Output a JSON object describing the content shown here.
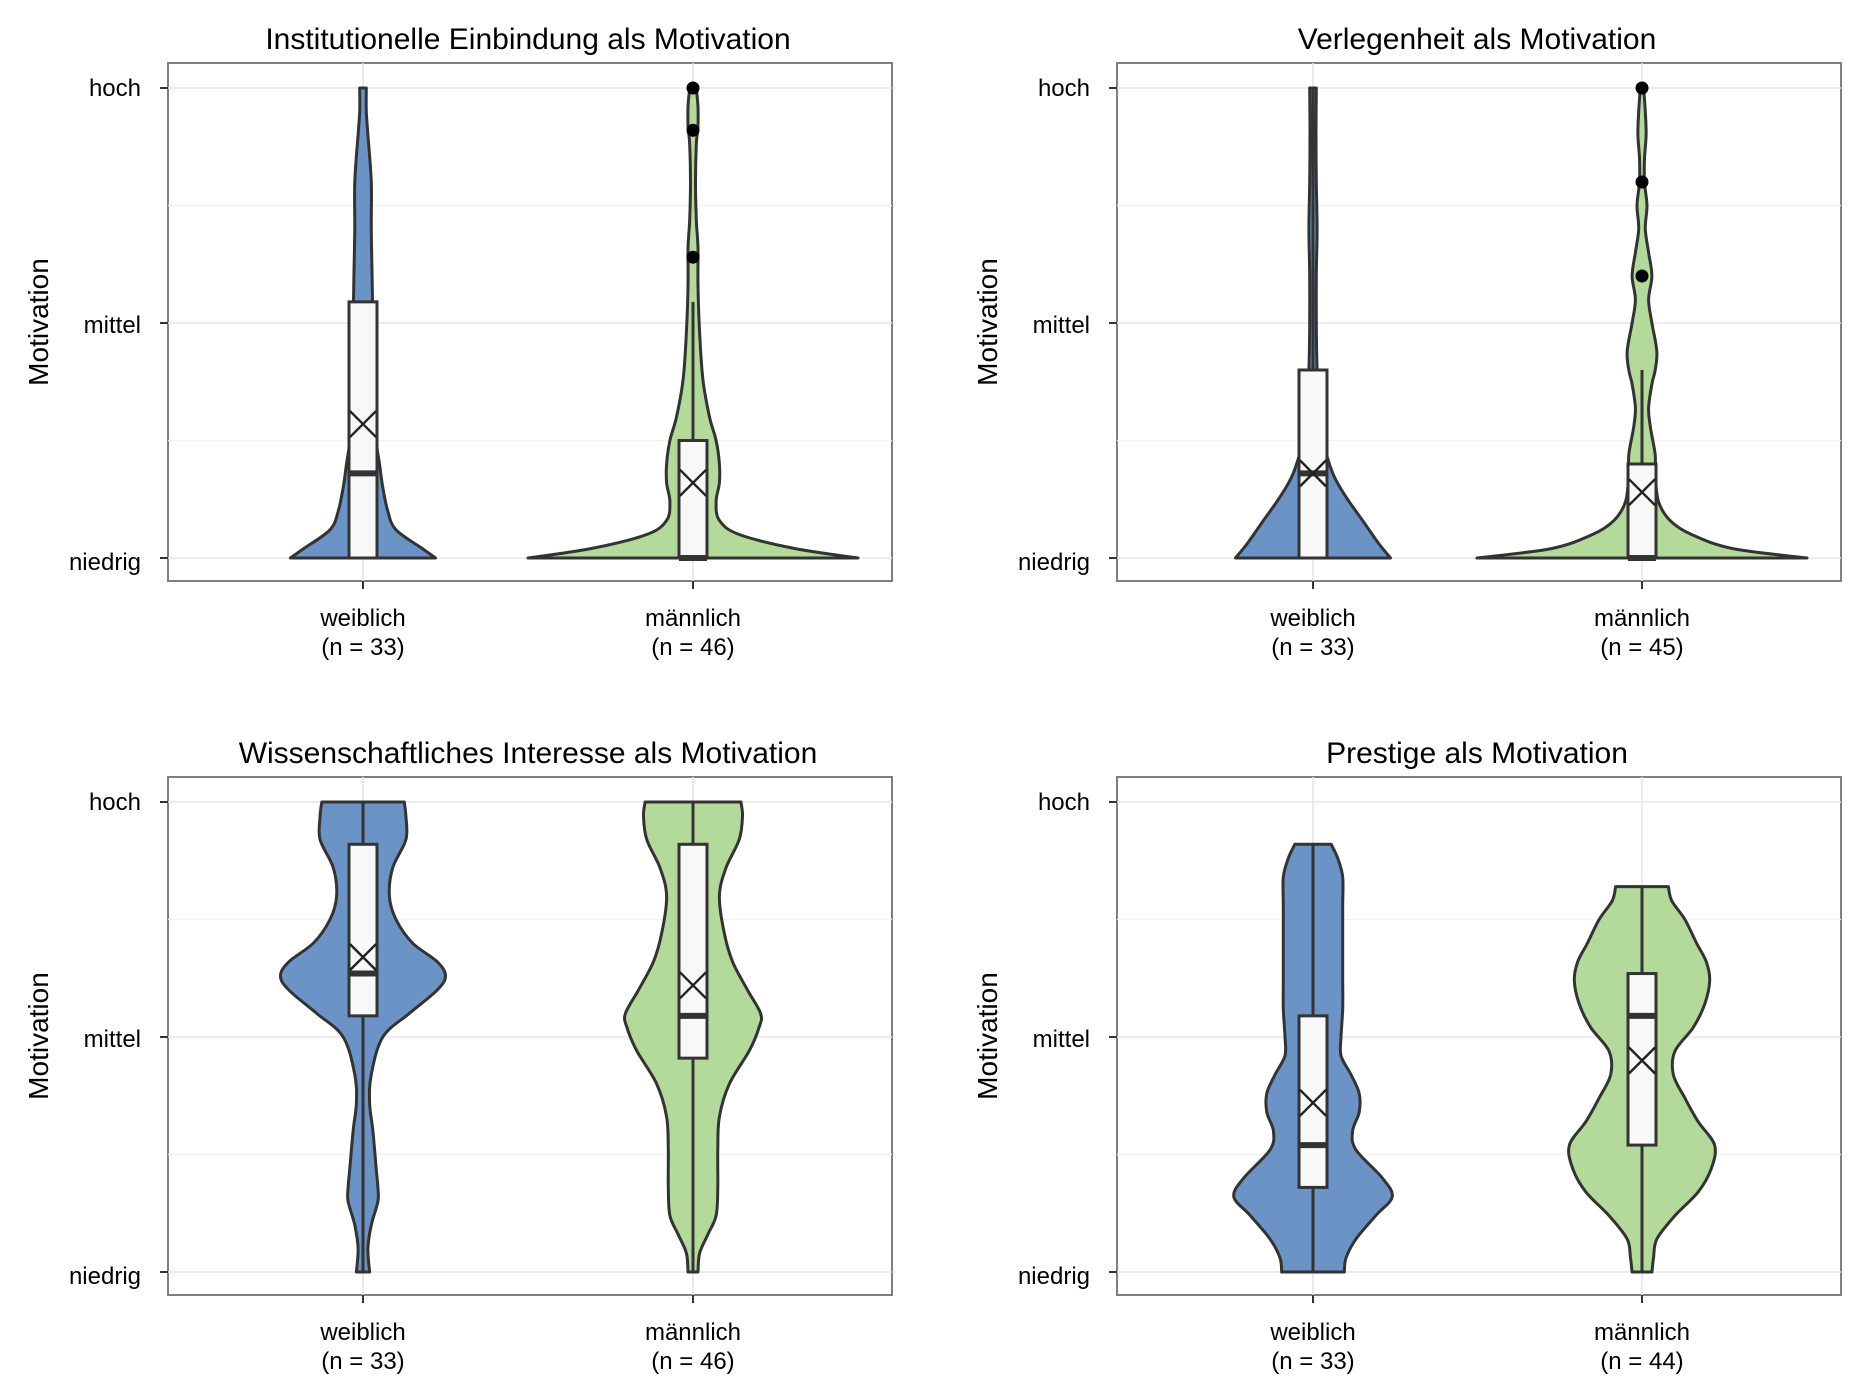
{
  "chart_data": [
    {
      "type": "violin",
      "title": "Institutionelle Einbindung als Motivation",
      "ylabel": "Motivation",
      "ytick_labels": [
        "niedrig",
        "mittel",
        "hoch"
      ],
      "ylim": [
        0,
        1
      ],
      "colors": {
        "weiblich": "#6b93c6",
        "männlich": "#b3da9a"
      },
      "groups": [
        {
          "label": "weiblich",
          "n_label": "(n = 33)",
          "box": {
            "q1": 0.0,
            "median": 0.18,
            "q3": 0.545,
            "whisker_low": 0.0,
            "whisker_high": 0.545
          },
          "mean": 0.285,
          "outliers": [],
          "density": [
            [
              0,
              0.44
            ],
            [
              0.02,
              0.36
            ],
            [
              0.06,
              0.2
            ],
            [
              0.1,
              0.15
            ],
            [
              0.15,
              0.12
            ],
            [
              0.2,
              0.1
            ],
            [
              0.25,
              0.08
            ],
            [
              0.35,
              0.065
            ],
            [
              0.5,
              0.06
            ],
            [
              0.6,
              0.055
            ],
            [
              0.7,
              0.05
            ],
            [
              0.8,
              0.05
            ],
            [
              0.9,
              0.03
            ],
            [
              0.95,
              0.02
            ],
            [
              1,
              0.02
            ]
          ]
        },
        {
          "label": "männlich",
          "n_label": "(n = 46)",
          "box": {
            "q1": 0.0,
            "median": 0.0,
            "q3": 0.25,
            "whisker_low": 0.0,
            "whisker_high": 0.545
          },
          "mean": 0.16,
          "outliers": [
            0.64,
            0.91,
            1.0
          ],
          "density": [
            [
              0,
              1
            ],
            [
              0.02,
              0.62
            ],
            [
              0.05,
              0.28
            ],
            [
              0.08,
              0.16
            ],
            [
              0.12,
              0.14
            ],
            [
              0.16,
              0.16
            ],
            [
              0.2,
              0.16
            ],
            [
              0.25,
              0.14
            ],
            [
              0.3,
              0.1
            ],
            [
              0.38,
              0.06
            ],
            [
              0.48,
              0.04
            ],
            [
              0.58,
              0.03
            ],
            [
              0.66,
              0.03
            ],
            [
              0.72,
              0.02
            ],
            [
              0.8,
              0.015
            ],
            [
              0.88,
              0.02
            ],
            [
              0.92,
              0.03
            ],
            [
              0.96,
              0.03
            ],
            [
              1,
              0.02
            ]
          ]
        }
      ]
    },
    {
      "type": "violin",
      "title": "Verlegenheit als Motivation",
      "ylabel": "Motivation",
      "ytick_labels": [
        "niedrig",
        "mittel",
        "hoch"
      ],
      "ylim": [
        0,
        1
      ],
      "colors": {
        "weiblich": "#6b93c6",
        "männlich": "#b3da9a"
      },
      "groups": [
        {
          "label": "weiblich",
          "n_label": "(n = 33)",
          "box": {
            "q1": 0.0,
            "median": 0.18,
            "q3": 0.4,
            "whisker_low": 0.0,
            "whisker_high": 1.0
          },
          "mean": 0.18,
          "outliers": [],
          "density": [
            [
              0,
              0.47
            ],
            [
              0.03,
              0.4
            ],
            [
              0.08,
              0.3
            ],
            [
              0.13,
              0.2
            ],
            [
              0.18,
              0.12
            ],
            [
              0.25,
              0.06
            ],
            [
              0.3,
              0.04
            ],
            [
              0.4,
              0.025
            ],
            [
              0.5,
              0.02
            ],
            [
              0.6,
              0.02
            ],
            [
              0.7,
              0.025
            ],
            [
              0.8,
              0.02
            ],
            [
              0.9,
              0.018
            ],
            [
              1,
              0.02
            ]
          ]
        },
        {
          "label": "männlich",
          "n_label": "(n = 45)",
          "box": {
            "q1": 0.0,
            "median": 0.0,
            "q3": 0.2,
            "whisker_low": 0.0,
            "whisker_high": 0.4
          },
          "mean": 0.14,
          "outliers": [
            0.6,
            0.8,
            1.0
          ],
          "density": [
            [
              0,
              1
            ],
            [
              0.02,
              0.55
            ],
            [
              0.05,
              0.3
            ],
            [
              0.08,
              0.17
            ],
            [
              0.12,
              0.1
            ],
            [
              0.18,
              0.08
            ],
            [
              0.22,
              0.08
            ],
            [
              0.28,
              0.05
            ],
            [
              0.32,
              0.04
            ],
            [
              0.37,
              0.06
            ],
            [
              0.4,
              0.08
            ],
            [
              0.44,
              0.09
            ],
            [
              0.5,
              0.06
            ],
            [
              0.55,
              0.04
            ],
            [
              0.6,
              0.06
            ],
            [
              0.65,
              0.04
            ],
            [
              0.7,
              0.02
            ],
            [
              0.75,
              0.03
            ],
            [
              0.8,
              0.015
            ],
            [
              0.85,
              0.015
            ],
            [
              0.9,
              0.025
            ],
            [
              0.95,
              0.02
            ],
            [
              1,
              0.01
            ]
          ]
        }
      ]
    },
    {
      "type": "violin",
      "title": "Wissenschaftliches Interesse als Motivation",
      "ylabel": "Motivation",
      "ytick_labels": [
        "niedrig",
        "mittel",
        "hoch"
      ],
      "ylim": [
        0,
        1
      ],
      "colors": {
        "weiblich": "#6b93c6",
        "männlich": "#b3da9a"
      },
      "groups": [
        {
          "label": "weiblich",
          "n_label": "(n = 33)",
          "box": {
            "q1": 0.545,
            "median": 0.635,
            "q3": 0.91,
            "whisker_low": 0.0,
            "whisker_high": 1.0
          },
          "mean": 0.67,
          "outliers": [],
          "density": [
            [
              0,
              0.04
            ],
            [
              0.05,
              0.03
            ],
            [
              0.1,
              0.05
            ],
            [
              0.15,
              0.09
            ],
            [
              0.18,
              0.09
            ],
            [
              0.22,
              0.08
            ],
            [
              0.3,
              0.06
            ],
            [
              0.36,
              0.04
            ],
            [
              0.42,
              0.05
            ],
            [
              0.5,
              0.12
            ],
            [
              0.55,
              0.28
            ],
            [
              0.6,
              0.45
            ],
            [
              0.63,
              0.5
            ],
            [
              0.66,
              0.45
            ],
            [
              0.7,
              0.3
            ],
            [
              0.75,
              0.2
            ],
            [
              0.8,
              0.16
            ],
            [
              0.86,
              0.18
            ],
            [
              0.92,
              0.26
            ],
            [
              0.97,
              0.26
            ],
            [
              1,
              0.25
            ]
          ]
        },
        {
          "label": "männlich",
          "n_label": "(n = 46)",
          "box": {
            "q1": 0.455,
            "median": 0.545,
            "q3": 0.91,
            "whisker_low": 0.0,
            "whisker_high": 1.0
          },
          "mean": 0.61,
          "outliers": [],
          "density": [
            [
              0,
              0.03
            ],
            [
              0.04,
              0.04
            ],
            [
              0.08,
              0.09
            ],
            [
              0.12,
              0.14
            ],
            [
              0.18,
              0.15
            ],
            [
              0.26,
              0.15
            ],
            [
              0.33,
              0.16
            ],
            [
              0.4,
              0.22
            ],
            [
              0.47,
              0.34
            ],
            [
              0.52,
              0.4
            ],
            [
              0.55,
              0.41
            ],
            [
              0.6,
              0.33
            ],
            [
              0.66,
              0.24
            ],
            [
              0.72,
              0.19
            ],
            [
              0.8,
              0.16
            ],
            [
              0.86,
              0.2
            ],
            [
              0.92,
              0.28
            ],
            [
              0.97,
              0.3
            ],
            [
              1,
              0.29
            ]
          ]
        }
      ]
    },
    {
      "type": "violin",
      "title": "Prestige als Motivation",
      "ylabel": "Motivation",
      "ytick_labels": [
        "niedrig",
        "mittel",
        "hoch"
      ],
      "ylim": [
        0,
        1
      ],
      "colors": {
        "weiblich": "#6b93c6",
        "männlich": "#b3da9a"
      },
      "groups": [
        {
          "label": "weiblich",
          "n_label": "(n = 33)",
          "box": {
            "q1": 0.18,
            "median": 0.27,
            "q3": 0.545,
            "whisker_low": 0.0,
            "whisker_high": 0.91
          },
          "mean": 0.36,
          "outliers": [],
          "density": [
            [
              0,
              0.19
            ],
            [
              0.03,
              0.2
            ],
            [
              0.07,
              0.26
            ],
            [
              0.12,
              0.38
            ],
            [
              0.16,
              0.48
            ],
            [
              0.2,
              0.42
            ],
            [
              0.26,
              0.26
            ],
            [
              0.3,
              0.24
            ],
            [
              0.34,
              0.28
            ],
            [
              0.38,
              0.28
            ],
            [
              0.42,
              0.23
            ],
            [
              0.46,
              0.17
            ],
            [
              0.5,
              0.17
            ],
            [
              0.56,
              0.18
            ],
            [
              0.62,
              0.18
            ],
            [
              0.7,
              0.18
            ],
            [
              0.78,
              0.18
            ],
            [
              0.84,
              0.18
            ],
            [
              0.88,
              0.15
            ],
            [
              0.91,
              0.11
            ]
          ]
        },
        {
          "label": "männlich",
          "n_label": "(n = 44)",
          "box": {
            "q1": 0.27,
            "median": 0.545,
            "q3": 0.635,
            "whisker_low": 0.0,
            "whisker_high": 0.82
          },
          "mean": 0.45,
          "outliers": [],
          "density": [
            [
              0,
              0.06
            ],
            [
              0.03,
              0.07
            ],
            [
              0.07,
              0.09
            ],
            [
              0.12,
              0.2
            ],
            [
              0.17,
              0.34
            ],
            [
              0.22,
              0.42
            ],
            [
              0.27,
              0.44
            ],
            [
              0.32,
              0.34
            ],
            [
              0.37,
              0.26
            ],
            [
              0.42,
              0.19
            ],
            [
              0.47,
              0.2
            ],
            [
              0.52,
              0.31
            ],
            [
              0.57,
              0.38
            ],
            [
              0.62,
              0.41
            ],
            [
              0.66,
              0.39
            ],
            [
              0.7,
              0.33
            ],
            [
              0.75,
              0.26
            ],
            [
              0.79,
              0.18
            ],
            [
              0.82,
              0.16
            ]
          ]
        }
      ]
    }
  ]
}
